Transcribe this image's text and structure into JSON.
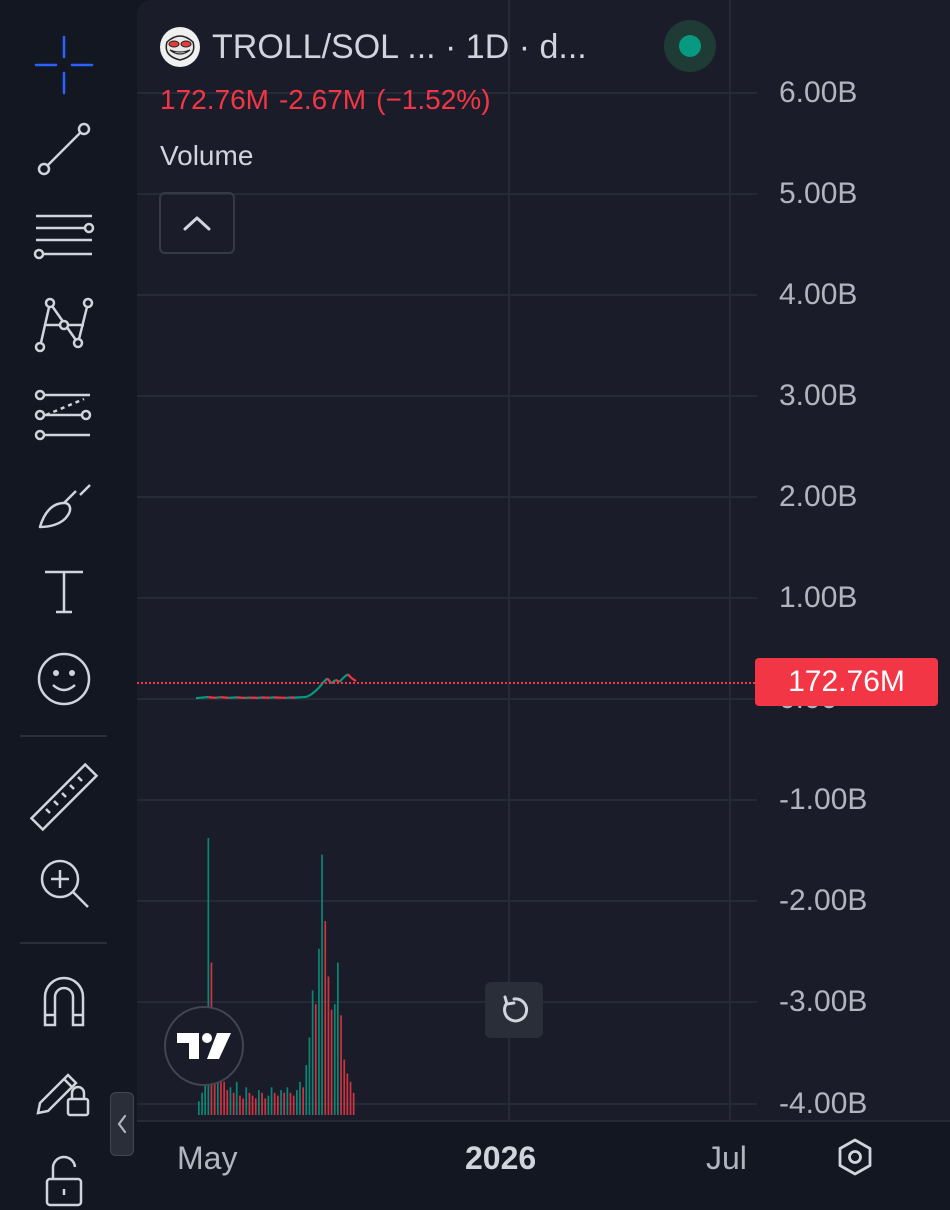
{
  "toolbar": {
    "tools": [
      {
        "name": "crosshair-icon"
      },
      {
        "name": "trend-line-icon"
      },
      {
        "name": "horizontal-lines-icon"
      },
      {
        "name": "pattern-icon"
      },
      {
        "name": "forecast-icon"
      },
      {
        "name": "brush-icon"
      },
      {
        "name": "text-icon"
      },
      {
        "name": "emoji-icon"
      },
      {
        "name": "ruler-icon"
      },
      {
        "name": "zoom-in-icon"
      },
      {
        "name": "magnet-icon"
      },
      {
        "name": "lock-drawings-icon"
      },
      {
        "name": "unlock-icon"
      }
    ],
    "active_color": "#2962ff"
  },
  "header": {
    "symbol": "TROLL/SOL ... · 1D · d...",
    "last_value": "172.76M",
    "change": "-2.67M",
    "change_percent": "(−1.52%)",
    "indicator": "Volume",
    "status_color": "#089981"
  },
  "chart_data": {
    "type": "line",
    "y_axis_labels": [
      "6.00B",
      "5.00B",
      "4.00B",
      "3.00B",
      "2.00B",
      "1.00B",
      "0.00",
      "-1.00B",
      "-2.00B",
      "-3.00B",
      "-4.00B"
    ],
    "x_axis_labels": [
      "May",
      "2026",
      "Jul"
    ],
    "ylim": [
      -4000000000,
      6000000000
    ],
    "current_price_label": "172.76M",
    "current_price": 172760000,
    "price_line_color": "#f23645",
    "price_series": {
      "up_color": "#089981",
      "down_color": "#f23645",
      "values": [
        5000000.0,
        8000000.0,
        12000000.0,
        15000000.0,
        10000000.0,
        9000000.0,
        14000000.0,
        11000000.0,
        8000000.0,
        10000000.0,
        12000000.0,
        9000000.0,
        7000000.0,
        10000000.0,
        9000000.0,
        8000000.0,
        11000000.0,
        10000000.0,
        9000000.0,
        12000000.0,
        10000000.0,
        9000000.0,
        8000000.0,
        11000000.0,
        10000000.0,
        12000000.0,
        14000000.0,
        18000000.0,
        40000000.0,
        70000000.0,
        110000000.0,
        160000000.0,
        200000000.0,
        150000000.0,
        185000000.0,
        165000000.0,
        210000000.0,
        240000000.0,
        200000000.0,
        172760000.0
      ]
    },
    "volume_series": {
      "values": [
        0.05,
        0.08,
        0.12,
        1.0,
        0.55,
        0.3,
        0.35,
        0.18,
        0.12,
        0.09,
        0.1,
        0.08,
        0.12,
        0.07,
        0.06,
        0.1,
        0.08,
        0.07,
        0.06,
        0.09,
        0.08,
        0.06,
        0.07,
        0.1,
        0.08,
        0.07,
        0.09,
        0.08,
        0.1,
        0.08,
        0.07,
        0.09,
        0.12,
        0.1,
        0.18,
        0.28,
        0.45,
        0.4,
        0.6,
        0.94,
        0.7,
        0.5,
        0.38,
        0.4,
        0.55,
        0.36,
        0.2,
        0.15,
        0.12,
        0.08
      ]
    }
  }
}
